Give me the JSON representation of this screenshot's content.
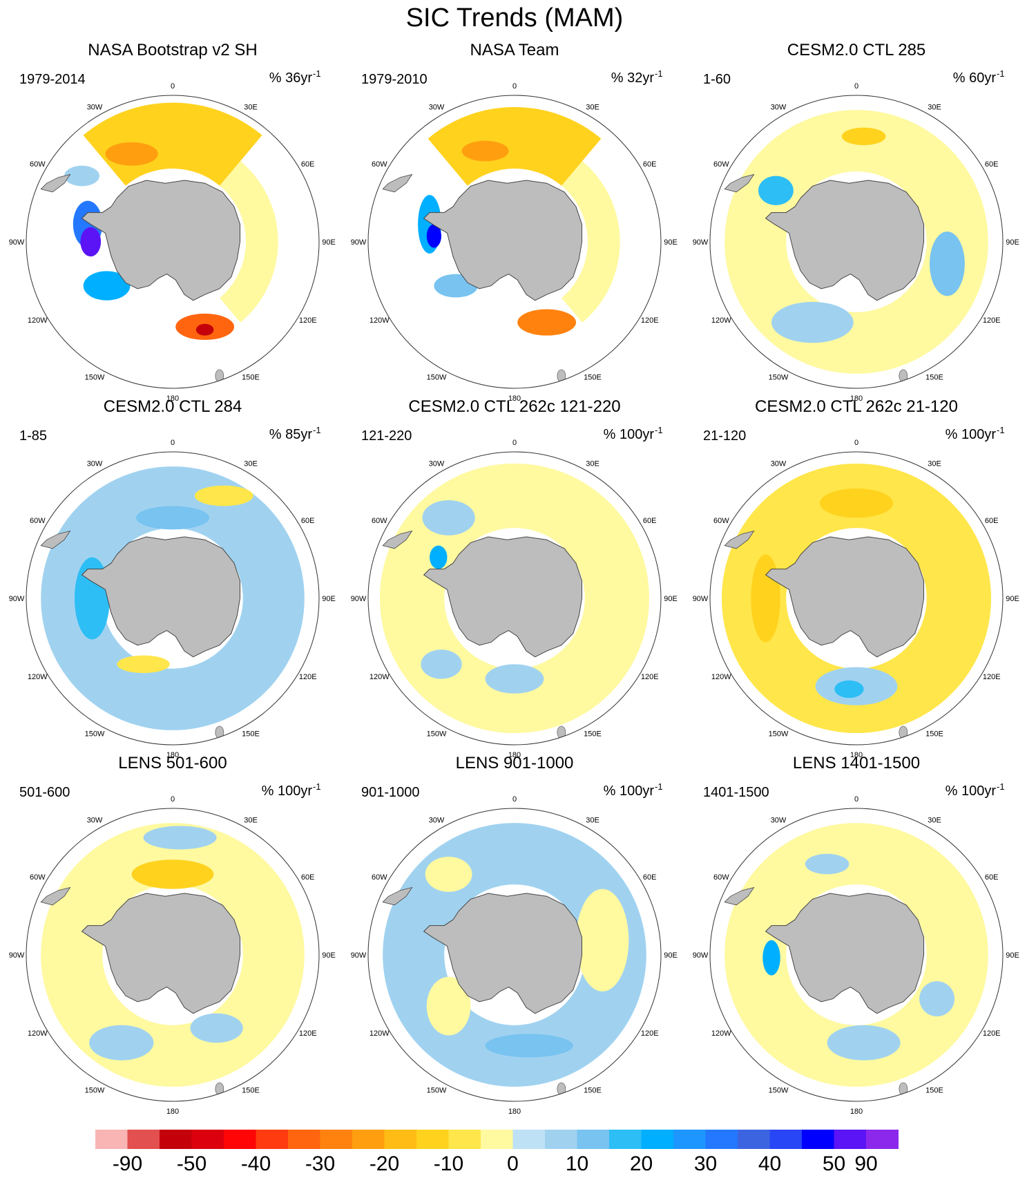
{
  "title": "SIC Trends (MAM)",
  "colors": {
    "land": "#bdbdbd",
    "land_edge": "#444444",
    "ring": "#333333"
  },
  "chart_data": {
    "type": "heatmap",
    "projection": "south-polar-stereographic",
    "longitude_labels": [
      "0",
      "30E",
      "60E",
      "90E",
      "120E",
      "150E",
      "180",
      "150W",
      "120W",
      "90W",
      "60W",
      "30W"
    ],
    "colorbar": {
      "tick_labels": [
        "-90",
        "-50",
        "-40",
        "-30",
        "-20",
        "-10",
        "0",
        "10",
        "20",
        "30",
        "40",
        "50",
        "90"
      ],
      "colors": [
        "#f9b4b4",
        "#e2504f",
        "#c4000a",
        "#dc000f",
        "#ff0505",
        "#ff3b0f",
        "#ff650f",
        "#ff820f",
        "#ff9f0f",
        "#ffbc14",
        "#ffd21e",
        "#ffe64a",
        "#fff9a0",
        "#bee1f5",
        "#a0d2f0",
        "#78c3f0",
        "#2dbef5",
        "#00afff",
        "#1e96ff",
        "#2378ff",
        "#3c64e1",
        "#2846f5",
        "#0000ff",
        "#5a14f5",
        "#8c28eb"
      ],
      "ticks_at_boundaries": [
        1,
        3,
        5,
        7,
        9,
        11,
        13,
        15,
        17,
        19,
        21,
        23,
        24
      ]
    },
    "panels": [
      {
        "title": "NASA Bootstrap v2 SH",
        "period": "1979-2014",
        "units": "% 36yr",
        "units_exp": "-1",
        "features": [
          {
            "shape": "ring",
            "cx": 0.05,
            "cy": -0.55,
            "r1": 0.5,
            "r2": 0.95,
            "a0": -40,
            "a1": 40,
            "value": 12
          },
          {
            "shape": "ring",
            "cx": 0.0,
            "cy": 0.0,
            "r1": 0.5,
            "r2": 0.72,
            "a0": 40,
            "a1": 140,
            "value": 5
          },
          {
            "shape": "blob",
            "x": -0.62,
            "y": -0.45,
            "rx": 0.12,
            "ry": 0.07,
            "value": -8
          },
          {
            "shape": "blob",
            "x": -0.58,
            "y": -0.12,
            "rx": 0.1,
            "ry": 0.16,
            "value": -30
          },
          {
            "shape": "blob",
            "x": -0.56,
            "y": 0.0,
            "rx": 0.07,
            "ry": 0.1,
            "value": -70
          },
          {
            "shape": "blob",
            "x": -0.45,
            "y": 0.3,
            "rx": 0.16,
            "ry": 0.1,
            "value": -20
          },
          {
            "shape": "blob",
            "x": 0.22,
            "y": 0.58,
            "rx": 0.2,
            "ry": 0.09,
            "value": 35
          },
          {
            "shape": "blob",
            "x": 0.22,
            "y": 0.6,
            "rx": 0.06,
            "ry": 0.04,
            "value": 55
          },
          {
            "shape": "blob",
            "x": -0.28,
            "y": -0.6,
            "rx": 0.18,
            "ry": 0.08,
            "value": 25
          }
        ]
      },
      {
        "title": "NASA Team",
        "period": "1979-2010",
        "units": "% 32yr",
        "units_exp": "-1",
        "features": [
          {
            "shape": "ring",
            "cx": 0.05,
            "cy": -0.55,
            "r1": 0.5,
            "r2": 0.92,
            "a0": -40,
            "a1": 40,
            "value": 12
          },
          {
            "shape": "ring",
            "cx": 0.0,
            "cy": 0.0,
            "r1": 0.5,
            "r2": 0.72,
            "a0": 40,
            "a1": 140,
            "value": 5
          },
          {
            "shape": "blob",
            "x": -0.58,
            "y": -0.12,
            "rx": 0.08,
            "ry": 0.2,
            "value": -20
          },
          {
            "shape": "blob",
            "x": -0.55,
            "y": -0.04,
            "rx": 0.05,
            "ry": 0.08,
            "value": -45
          },
          {
            "shape": "blob",
            "x": -0.4,
            "y": 0.3,
            "rx": 0.15,
            "ry": 0.08,
            "value": -12
          },
          {
            "shape": "blob",
            "x": 0.22,
            "y": 0.55,
            "rx": 0.2,
            "ry": 0.09,
            "value": 30
          },
          {
            "shape": "blob",
            "x": -0.2,
            "y": -0.62,
            "rx": 0.16,
            "ry": 0.07,
            "value": 22
          }
        ]
      },
      {
        "title": "CESM2.0 CTL 285",
        "period": "1-60",
        "units": "% 60yr",
        "units_exp": "-1",
        "features": [
          {
            "shape": "ring",
            "cx": 0.0,
            "cy": 0.0,
            "r1": 0.48,
            "r2": 0.9,
            "a0": 0,
            "a1": 360,
            "value": 5
          },
          {
            "shape": "blob",
            "x": -0.55,
            "y": -0.35,
            "rx": 0.12,
            "ry": 0.1,
            "value": -15
          },
          {
            "shape": "blob",
            "x": 0.62,
            "y": 0.15,
            "rx": 0.12,
            "ry": 0.22,
            "value": -12
          },
          {
            "shape": "blob",
            "x": -0.3,
            "y": 0.55,
            "rx": 0.28,
            "ry": 0.14,
            "value": -5
          },
          {
            "shape": "blob",
            "x": 0.05,
            "y": -0.72,
            "rx": 0.15,
            "ry": 0.06,
            "value": 12
          }
        ]
      },
      {
        "title": "CESM2.0 CTL 284",
        "period": "1-85",
        "units": "% 85yr",
        "units_exp": "-1",
        "features": [
          {
            "shape": "ring",
            "cx": 0.0,
            "cy": 0.0,
            "r1": 0.48,
            "r2": 0.9,
            "a0": 0,
            "a1": 360,
            "value": -5
          },
          {
            "shape": "blob",
            "x": -0.55,
            "y": 0.0,
            "rx": 0.12,
            "ry": 0.28,
            "value": -15
          },
          {
            "shape": "blob",
            "x": 0.0,
            "y": -0.55,
            "rx": 0.25,
            "ry": 0.08,
            "value": -12
          },
          {
            "shape": "blob",
            "x": -0.2,
            "y": 0.45,
            "rx": 0.18,
            "ry": 0.06,
            "value": 8
          },
          {
            "shape": "blob",
            "x": 0.35,
            "y": -0.7,
            "rx": 0.2,
            "ry": 0.07,
            "value": 7
          }
        ]
      },
      {
        "title": "CESM2.0 CTL 262c 121-220",
        "period": "121-220",
        "units": "% 100yr",
        "units_exp": "-1",
        "features": [
          {
            "shape": "ring",
            "cx": 0.0,
            "cy": 0.0,
            "r1": 0.48,
            "r2": 0.92,
            "a0": 0,
            "a1": 360,
            "value": 5
          },
          {
            "shape": "blob",
            "x": -0.45,
            "y": -0.55,
            "rx": 0.18,
            "ry": 0.12,
            "value": -8
          },
          {
            "shape": "blob",
            "x": -0.52,
            "y": -0.28,
            "rx": 0.06,
            "ry": 0.08,
            "value": -20
          },
          {
            "shape": "blob",
            "x": 0.0,
            "y": 0.55,
            "rx": 0.2,
            "ry": 0.1,
            "value": -6
          },
          {
            "shape": "blob",
            "x": -0.5,
            "y": 0.45,
            "rx": 0.14,
            "ry": 0.1,
            "value": -5
          }
        ]
      },
      {
        "title": "CESM2.0 CTL 262c 21-120",
        "period": "21-120",
        "units": "% 100yr",
        "units_exp": "-1",
        "features": [
          {
            "shape": "ring",
            "cx": 0.0,
            "cy": 0.0,
            "r1": 0.48,
            "r2": 0.92,
            "a0": 0,
            "a1": 360,
            "value": 8
          },
          {
            "shape": "blob",
            "x": -0.62,
            "y": 0.0,
            "rx": 0.1,
            "ry": 0.3,
            "value": 15
          },
          {
            "shape": "blob",
            "x": 0.0,
            "y": -0.65,
            "rx": 0.25,
            "ry": 0.1,
            "value": 15
          },
          {
            "shape": "blob",
            "x": 0.0,
            "y": 0.6,
            "rx": 0.28,
            "ry": 0.13,
            "value": -8
          },
          {
            "shape": "blob",
            "x": -0.05,
            "y": 0.62,
            "rx": 0.1,
            "ry": 0.06,
            "value": -15
          }
        ]
      },
      {
        "title": "LENS 501-600",
        "period": "501-600",
        "units": "% 100yr",
        "units_exp": "-1",
        "features": [
          {
            "shape": "ring",
            "cx": 0.0,
            "cy": 0.0,
            "r1": 0.48,
            "r2": 0.9,
            "a0": 0,
            "a1": 360,
            "value": 5
          },
          {
            "shape": "blob",
            "x": 0.0,
            "y": -0.55,
            "rx": 0.28,
            "ry": 0.1,
            "value": 12
          },
          {
            "shape": "blob",
            "x": -0.35,
            "y": 0.6,
            "rx": 0.22,
            "ry": 0.12,
            "value": -5
          },
          {
            "shape": "blob",
            "x": 0.3,
            "y": 0.5,
            "rx": 0.18,
            "ry": 0.1,
            "value": -5
          },
          {
            "shape": "blob",
            "x": 0.05,
            "y": -0.8,
            "rx": 0.25,
            "ry": 0.08,
            "value": -5
          }
        ]
      },
      {
        "title": "LENS 901-1000",
        "period": "901-1000",
        "units": "% 100yr",
        "units_exp": "-1",
        "features": [
          {
            "shape": "ring",
            "cx": 0.0,
            "cy": 0.0,
            "r1": 0.48,
            "r2": 0.9,
            "a0": 0,
            "a1": 360,
            "value": -5
          },
          {
            "shape": "blob",
            "x": 0.6,
            "y": -0.1,
            "rx": 0.18,
            "ry": 0.35,
            "value": 5
          },
          {
            "shape": "blob",
            "x": -0.45,
            "y": 0.35,
            "rx": 0.15,
            "ry": 0.2,
            "value": 5
          },
          {
            "shape": "blob",
            "x": 0.1,
            "y": 0.62,
            "rx": 0.3,
            "ry": 0.08,
            "value": -12
          },
          {
            "shape": "blob",
            "x": -0.45,
            "y": -0.55,
            "rx": 0.16,
            "ry": 0.12,
            "value": 5
          }
        ]
      },
      {
        "title": "LENS 1401-1500",
        "period": "1401-1500",
        "units": "% 100yr",
        "units_exp": "-1",
        "features": [
          {
            "shape": "ring",
            "cx": 0.0,
            "cy": 0.0,
            "r1": 0.48,
            "r2": 0.9,
            "a0": 0,
            "a1": 360,
            "value": 5
          },
          {
            "shape": "blob",
            "x": -0.58,
            "y": 0.02,
            "rx": 0.06,
            "ry": 0.12,
            "value": -20
          },
          {
            "shape": "blob",
            "x": 0.05,
            "y": 0.6,
            "rx": 0.25,
            "ry": 0.12,
            "value": -5
          },
          {
            "shape": "blob",
            "x": -0.2,
            "y": -0.62,
            "rx": 0.15,
            "ry": 0.07,
            "value": -5
          },
          {
            "shape": "blob",
            "x": 0.55,
            "y": 0.3,
            "rx": 0.12,
            "ry": 0.12,
            "value": -5
          }
        ]
      }
    ]
  }
}
